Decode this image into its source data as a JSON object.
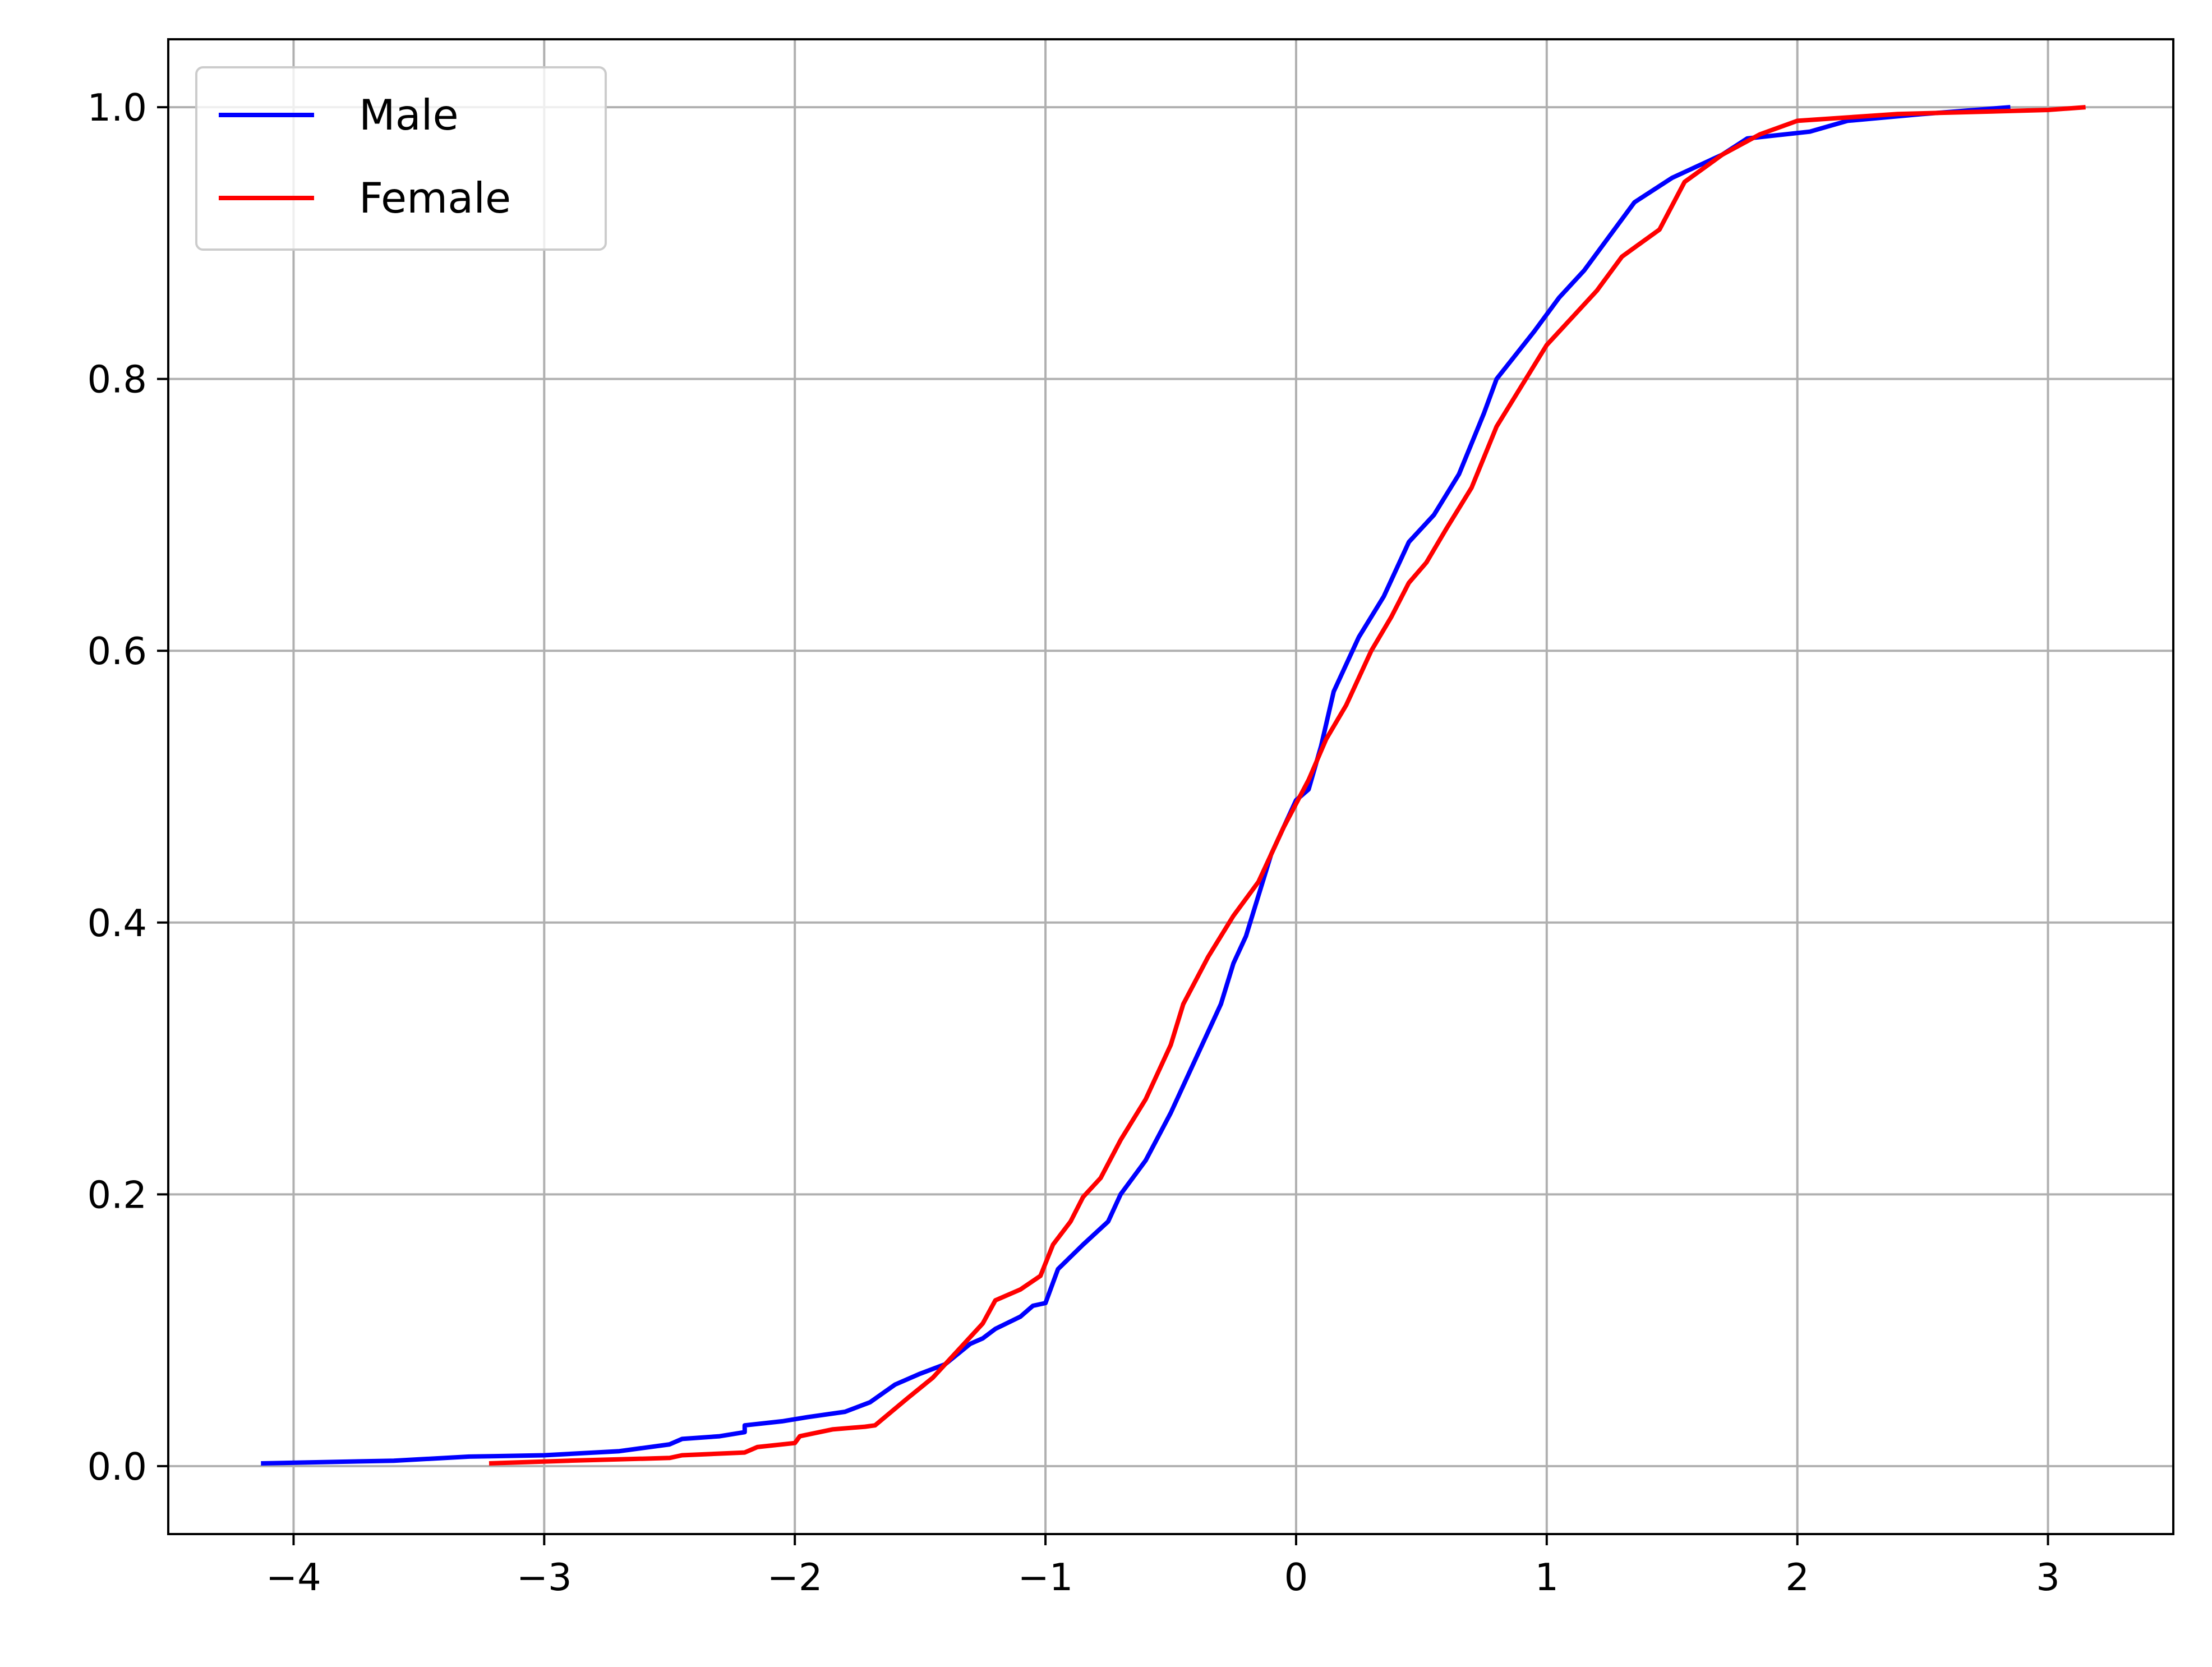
{
  "chart_data": {
    "type": "line",
    "title": "",
    "xlabel": "",
    "ylabel": "",
    "xlim": [
      -4.5,
      3.5
    ],
    "ylim": [
      -0.05,
      1.05
    ],
    "x_ticks": [
      -4,
      -3,
      -2,
      -1,
      0,
      1,
      2,
      3
    ],
    "x_tick_labels": [
      "−4",
      "−3",
      "−2",
      "−1",
      "0",
      "1",
      "2",
      "3"
    ],
    "y_ticks": [
      0.0,
      0.2,
      0.4,
      0.6,
      0.8,
      1.0
    ],
    "y_tick_labels": [
      "0.0",
      "0.2",
      "0.4",
      "0.6",
      "0.8",
      "1.0"
    ],
    "grid": true,
    "legend_position": "top-left",
    "series": [
      {
        "name": "Male",
        "color": "#0000ff",
        "points": [
          [
            -4.13,
            0.002
          ],
          [
            -3.6,
            0.004
          ],
          [
            -3.3,
            0.007
          ],
          [
            -3.0,
            0.008
          ],
          [
            -2.7,
            0.011
          ],
          [
            -2.5,
            0.016
          ],
          [
            -2.45,
            0.02
          ],
          [
            -2.3,
            0.022
          ],
          [
            -2.2,
            0.025
          ],
          [
            -2.2,
            0.03
          ],
          [
            -2.05,
            0.033
          ],
          [
            -1.95,
            0.036
          ],
          [
            -1.8,
            0.04
          ],
          [
            -1.7,
            0.047
          ],
          [
            -1.6,
            0.06
          ],
          [
            -1.5,
            0.068
          ],
          [
            -1.4,
            0.075
          ],
          [
            -1.3,
            0.09
          ],
          [
            -1.25,
            0.094
          ],
          [
            -1.2,
            0.101
          ],
          [
            -1.1,
            0.11
          ],
          [
            -1.05,
            0.118
          ],
          [
            -1.0,
            0.12
          ],
          [
            -0.95,
            0.145
          ],
          [
            -0.85,
            0.163
          ],
          [
            -0.75,
            0.18
          ],
          [
            -0.7,
            0.2
          ],
          [
            -0.6,
            0.225
          ],
          [
            -0.5,
            0.26
          ],
          [
            -0.4,
            0.3
          ],
          [
            -0.3,
            0.34
          ],
          [
            -0.25,
            0.37
          ],
          [
            -0.2,
            0.39
          ],
          [
            -0.1,
            0.45
          ],
          [
            0.0,
            0.49
          ],
          [
            0.05,
            0.498
          ],
          [
            0.1,
            0.53
          ],
          [
            0.15,
            0.57
          ],
          [
            0.25,
            0.61
          ],
          [
            0.35,
            0.64
          ],
          [
            0.45,
            0.68
          ],
          [
            0.55,
            0.7
          ],
          [
            0.65,
            0.73
          ],
          [
            0.75,
            0.775
          ],
          [
            0.8,
            0.8
          ],
          [
            0.95,
            0.835
          ],
          [
            1.05,
            0.86
          ],
          [
            1.15,
            0.88
          ],
          [
            1.25,
            0.905
          ],
          [
            1.35,
            0.93
          ],
          [
            1.5,
            0.948
          ],
          [
            1.7,
            0.965
          ],
          [
            1.8,
            0.977
          ],
          [
            2.05,
            0.982
          ],
          [
            2.2,
            0.99
          ],
          [
            2.5,
            0.995
          ],
          [
            2.85,
            1.0
          ]
        ]
      },
      {
        "name": "Female",
        "color": "#ff0000",
        "points": [
          [
            -3.22,
            0.002
          ],
          [
            -2.9,
            0.004
          ],
          [
            -2.5,
            0.006
          ],
          [
            -2.45,
            0.008
          ],
          [
            -2.2,
            0.01
          ],
          [
            -2.15,
            0.014
          ],
          [
            -2.0,
            0.017
          ],
          [
            -1.98,
            0.022
          ],
          [
            -1.85,
            0.027
          ],
          [
            -1.72,
            0.029
          ],
          [
            -1.68,
            0.03
          ],
          [
            -1.55,
            0.05
          ],
          [
            -1.45,
            0.065
          ],
          [
            -1.35,
            0.085
          ],
          [
            -1.25,
            0.105
          ],
          [
            -1.2,
            0.122
          ],
          [
            -1.1,
            0.13
          ],
          [
            -1.02,
            0.14
          ],
          [
            -0.97,
            0.163
          ],
          [
            -0.9,
            0.18
          ],
          [
            -0.85,
            0.198
          ],
          [
            -0.78,
            0.212
          ],
          [
            -0.7,
            0.24
          ],
          [
            -0.6,
            0.27
          ],
          [
            -0.5,
            0.31
          ],
          [
            -0.45,
            0.34
          ],
          [
            -0.35,
            0.375
          ],
          [
            -0.25,
            0.405
          ],
          [
            -0.15,
            0.43
          ],
          [
            -0.05,
            0.47
          ],
          [
            0.05,
            0.505
          ],
          [
            0.12,
            0.535
          ],
          [
            0.2,
            0.56
          ],
          [
            0.3,
            0.6
          ],
          [
            0.38,
            0.625
          ],
          [
            0.45,
            0.65
          ],
          [
            0.52,
            0.665
          ],
          [
            0.6,
            0.69
          ],
          [
            0.7,
            0.72
          ],
          [
            0.8,
            0.765
          ],
          [
            0.9,
            0.795
          ],
          [
            1.0,
            0.825
          ],
          [
            1.1,
            0.845
          ],
          [
            1.2,
            0.865
          ],
          [
            1.3,
            0.89
          ],
          [
            1.45,
            0.91
          ],
          [
            1.55,
            0.945
          ],
          [
            1.7,
            0.965
          ],
          [
            1.85,
            0.98
          ],
          [
            2.0,
            0.99
          ],
          [
            2.4,
            0.995
          ],
          [
            3.0,
            0.998
          ],
          [
            3.15,
            1.0
          ]
        ]
      }
    ]
  }
}
